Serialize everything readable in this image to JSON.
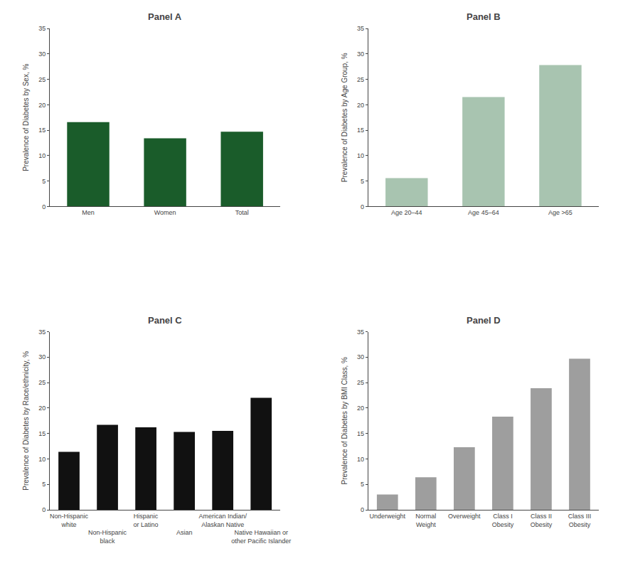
{
  "chart_data": [
    {
      "type": "bar",
      "title": "Panel A",
      "categories": [
        "Men",
        "Women",
        "Total"
      ],
      "values": [
        16.6,
        13.4,
        14.7
      ],
      "color": "#1a5c2a",
      "ylabel": "Prevalence of Diabetes by Sex, %",
      "ylim": [
        0,
        35
      ],
      "yticks": [
        0,
        5,
        10,
        15,
        20,
        25,
        30,
        35
      ],
      "grid": false
    },
    {
      "type": "bar",
      "title": "Panel B",
      "categories": [
        "Age 20–44",
        "Age 45–64",
        "Age >65"
      ],
      "values": [
        5.6,
        21.5,
        27.8
      ],
      "color": "#a8c4b0",
      "ylabel": "Prevalence of Diabetes by Age Group, %",
      "ylim": [
        0,
        35
      ],
      "yticks": [
        0,
        5,
        10,
        15,
        20,
        25,
        30,
        35
      ],
      "grid": false
    },
    {
      "type": "bar",
      "title": "Panel C",
      "categories": [
        "Non-Hispanic\nwhite",
        "Non-Hispanic\nblack",
        "Hispanic\nor Latino",
        "Asian",
        "American Indian/\nAlaskan Native",
        "Native Hawaiian or\nother Pacific Islander"
      ],
      "values": [
        11.4,
        16.7,
        16.2,
        15.3,
        15.5,
        22.0
      ],
      "color": "#111111",
      "ylabel": "Prevalence of Diabetes by Race/ethnicity, %",
      "ylim": [
        0,
        35
      ],
      "yticks": [
        0,
        5,
        10,
        15,
        20,
        25,
        30,
        35
      ],
      "grid": false
    },
    {
      "type": "bar",
      "title": "Panel D",
      "categories": [
        "Underweight",
        "Normal\nWeight",
        "Overweight",
        "Class I\nObesity",
        "Class II\nObesity",
        "Class III\nObesity"
      ],
      "values": [
        3.0,
        6.4,
        12.3,
        18.3,
        23.9,
        29.7
      ],
      "color": "#9e9e9e",
      "ylabel": "Prevalence of Diabetes by BMI Class, %",
      "ylim": [
        0,
        35
      ],
      "yticks": [
        0,
        5,
        10,
        15,
        20,
        25,
        30,
        35
      ],
      "grid": false
    }
  ]
}
